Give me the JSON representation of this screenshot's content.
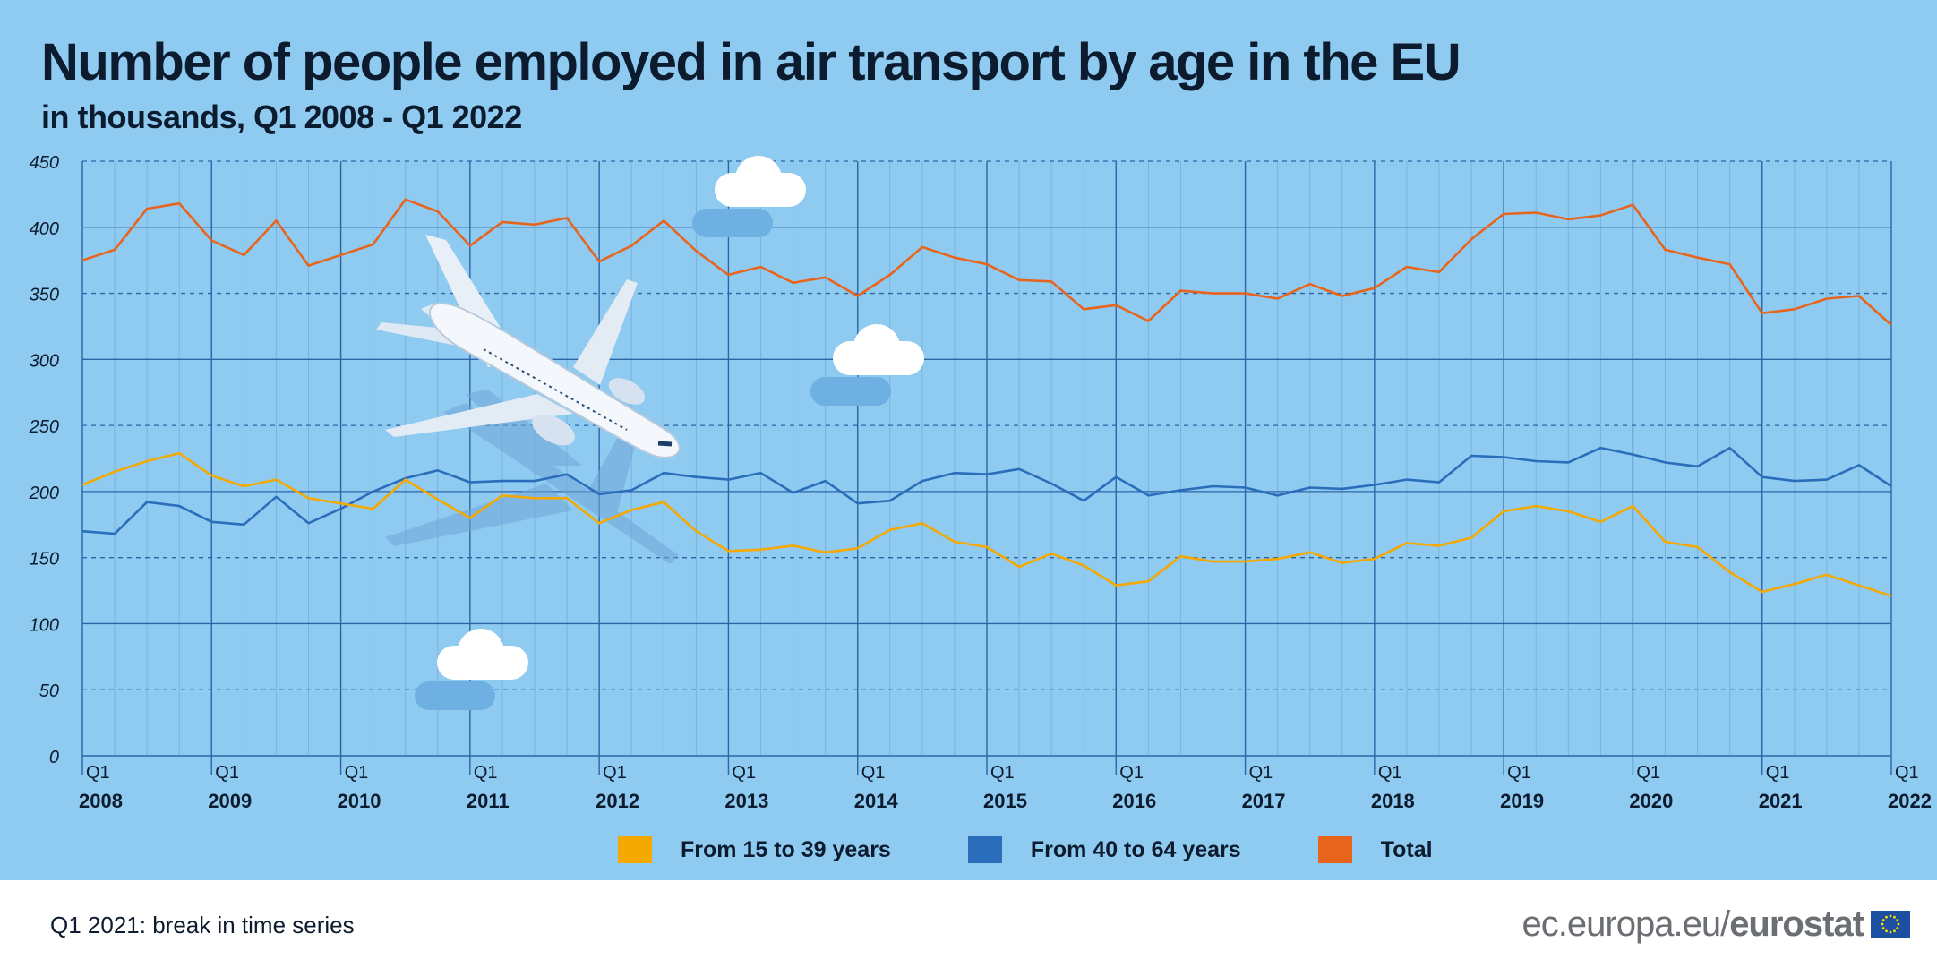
{
  "title": "Number of people employed in air transport by age in the EU",
  "subtitle": "in thousands, Q1 2008 - Q1 2022",
  "footnote": "Q1 2021: break in time series",
  "brand": {
    "site": "ec.europa.eu/",
    "name": "eurostat",
    "logo_icon": "eu-flag-icon"
  },
  "chart_data": {
    "type": "line",
    "title": "Number of people employed in air transport by age in the EU",
    "subtitle": "in thousands, Q1 2008 - Q1 2022",
    "ylim": [
      0,
      450
    ],
    "y_ticks": [
      "0",
      "50",
      "100",
      "150",
      "200",
      "250",
      "300",
      "350",
      "400",
      "450"
    ],
    "year_labels": [
      "2008",
      "2009",
      "2010",
      "2011",
      "2012",
      "2013",
      "2014",
      "2015",
      "2016",
      "2017",
      "2018",
      "2019",
      "2020",
      "2021",
      "2022"
    ],
    "quarter_label": "Q1",
    "grid": true,
    "legend_position": "bottom",
    "series": [
      {
        "name": "From 15 to 39 years",
        "color": "#f5a800",
        "values": [
          205,
          215,
          223,
          229,
          212,
          204,
          209,
          195,
          191,
          187,
          209,
          194,
          180,
          197,
          195,
          195,
          176,
          186,
          192,
          170,
          155,
          156,
          159,
          154,
          157,
          171,
          176,
          162,
          158,
          143,
          153,
          144,
          129,
          132,
          151,
          147,
          147,
          149,
          154,
          146,
          149,
          161,
          159,
          165,
          185,
          189,
          185,
          177,
          189,
          162,
          158,
          139,
          124,
          130,
          137,
          129,
          121
        ]
      },
      {
        "name": "From 40 to 64 years",
        "color": "#2a6ebb",
        "values": [
          170,
          168,
          192,
          189,
          177,
          175,
          196,
          176,
          187,
          200,
          210,
          216,
          207,
          208,
          208,
          213,
          198,
          201,
          214,
          211,
          209,
          214,
          199,
          208,
          191,
          193,
          208,
          214,
          213,
          217,
          206,
          193,
          211,
          197,
          201,
          204,
          203,
          197,
          203,
          202,
          205,
          209,
          207,
          227,
          226,
          223,
          222,
          233,
          228,
          222,
          219,
          233,
          211,
          208,
          209,
          220,
          204
        ]
      },
      {
        "name": "Total",
        "color": "#e8641c",
        "values": [
          375,
          383,
          414,
          418,
          390,
          379,
          405,
          371,
          379,
          387,
          421,
          412,
          386,
          404,
          402,
          407,
          374,
          386,
          405,
          382,
          364,
          370,
          358,
          362,
          348,
          364,
          385,
          377,
          372,
          360,
          359,
          338,
          341,
          329,
          352,
          350,
          350,
          346,
          357,
          348,
          354,
          370,
          366,
          391,
          410,
          411,
          406,
          409,
          417,
          383,
          377,
          372,
          335,
          338,
          346,
          348,
          326
        ]
      }
    ]
  }
}
